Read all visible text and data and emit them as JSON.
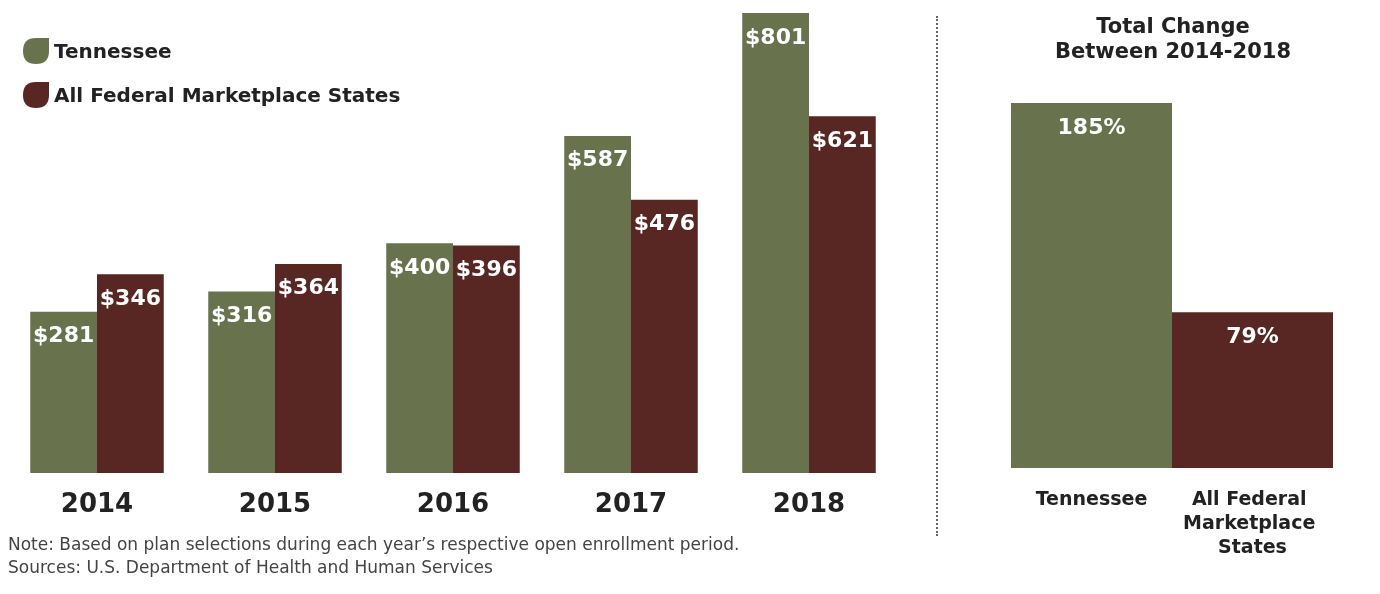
{
  "chart_data": [
    {
      "type": "bar",
      "categories": [
        "2014",
        "2015",
        "2016",
        "2017",
        "2018"
      ],
      "legend": "top left",
      "grid": false,
      "series": [
        {
          "name": "Tennessee",
          "color": "#68734e",
          "values": [
            281,
            316,
            400,
            587,
            801
          ],
          "value_labels": [
            "$281",
            "$316",
            "$400",
            "$587",
            "$801"
          ]
        },
        {
          "name": "All Federal Marketplace States",
          "color": "#582623",
          "values": [
            346,
            364,
            396,
            476,
            621
          ],
          "value_labels": [
            "$346",
            "$364",
            "$396",
            "$476",
            "$621"
          ]
        }
      ],
      "annotations": [
        "Note: Based on plan selections during each year’s respective open enrollment period.",
        "Sources: U.S. Department of Health and Human Services"
      ]
    },
    {
      "type": "bar",
      "title": "Total Change\nBetween 2014-2018",
      "categories": [
        "Tennessee",
        "All Federal Marketplace States"
      ],
      "values": [
        185,
        79
      ],
      "colors": [
        "#68734e",
        "#582623"
      ],
      "value_labels": [
        "185%",
        "79%"
      ],
      "grid": false,
      "legend": false
    }
  ]
}
